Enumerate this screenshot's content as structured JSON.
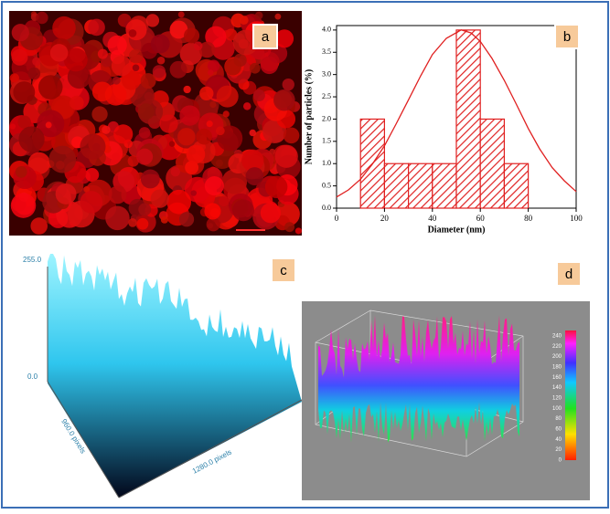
{
  "panel_labels": [
    "a",
    "b",
    "c",
    "d"
  ],
  "chart_data": {
    "type": "histogram",
    "xlabel": "Diameter (nm)",
    "ylabel": "Number of particles (%)",
    "bins": [
      10,
      20,
      30,
      40,
      50,
      60,
      70,
      80
    ],
    "values": [
      2,
      1,
      1,
      1,
      4,
      2,
      1
    ],
    "color": "#e02020",
    "xlim": [
      0,
      100
    ],
    "xticks": [
      0,
      20,
      40,
      60,
      80,
      100
    ],
    "ylim": [
      0,
      4.1
    ],
    "yticks": [
      {
        "value": 0,
        "label": "0.0"
      },
      {
        "value": 0.5,
        "label": "0.5"
      },
      {
        "value": 1,
        "label": "1.0"
      },
      {
        "value": 1.5,
        "label": "1.5"
      },
      {
        "value": 2,
        "label": "2.0"
      },
      {
        "value": 2.5,
        "label": "2.5"
      },
      {
        "value": 3,
        "label": "3.0"
      },
      {
        "value": 3.5,
        "label": "3.5"
      },
      {
        "value": 4,
        "label": "4.0"
      }
    ]
  },
  "surface_c": {
    "z_max": "255.0",
    "z_min": "0.0",
    "y_axis": "960.0 pixels",
    "x_axis": "1280.0 pixels"
  },
  "surface_d": {
    "colorbar_ticks": [
      0,
      20,
      40,
      60,
      80,
      100,
      120,
      140,
      160,
      180,
      200,
      220,
      240
    ]
  }
}
